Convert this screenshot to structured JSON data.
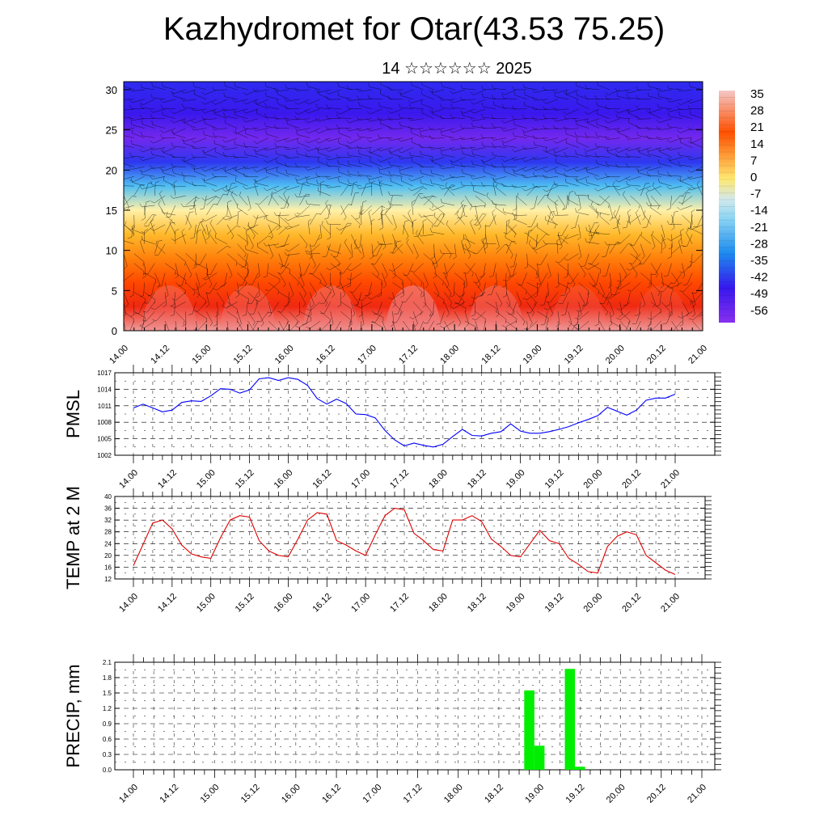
{
  "header": {
    "title": "Kazhydromet for Otar(43.53 75.25)",
    "subtitle": "14 ☆☆☆☆☆☆ 2025"
  },
  "x_ticks": [
    "14.00",
    "14.12",
    "15.00",
    "15.12",
    "16.00",
    "16.12",
    "17.00",
    "17.12",
    "18.00",
    "18.12",
    "19.00",
    "19.12",
    "20.00",
    "20.12",
    "21.00"
  ],
  "colors": {
    "pmsl_line": "#0000ff",
    "temp_line": "#dd0000",
    "precip_bar": "#00ee00",
    "wind_barb": "#000000"
  },
  "chart_data": [
    {
      "type": "heatmap",
      "title": "Upper-air temperature section with wind barbs",
      "x_categories": [
        "14.00",
        "14.12",
        "15.00",
        "15.12",
        "16.00",
        "16.12",
        "17.00",
        "17.12",
        "18.00",
        "18.12",
        "19.00",
        "19.12",
        "20.00",
        "20.12",
        "21.00"
      ],
      "y_ticks": [
        "0",
        "5",
        "10",
        "15",
        "20",
        "25",
        "30"
      ],
      "ylim": [
        0,
        31
      ],
      "legend_levels": [
        "35",
        "28",
        "21",
        "14",
        "7",
        "0",
        "-7",
        "-14",
        "-21",
        "-28",
        "-35",
        "-42",
        "-49",
        "-56"
      ],
      "colorbar_position": "right",
      "level_profile_y": [
        0,
        3,
        6,
        9,
        12,
        15,
        18,
        21,
        24,
        27,
        31
      ],
      "level_profile_value": [
        34,
        28,
        22,
        15,
        7,
        -5,
        -22,
        -40,
        -56,
        -48,
        -42
      ]
    },
    {
      "type": "line",
      "ylabel": "PMSL",
      "y_ticks": [
        "1002",
        "1005",
        "1008",
        "1011",
        "1014",
        "1017"
      ],
      "ylim": [
        1002,
        1017
      ],
      "grid": true,
      "x": [
        0,
        3,
        6,
        9,
        12,
        15,
        18,
        21,
        24,
        27,
        30,
        33,
        36,
        39,
        42,
        45,
        48,
        51,
        54,
        57,
        60,
        63,
        66,
        69,
        72,
        75,
        78,
        81,
        84,
        87,
        90,
        93,
        96,
        99,
        102,
        105,
        108,
        111,
        114,
        117,
        120,
        123,
        126,
        129,
        132,
        135,
        138,
        141,
        144,
        147,
        150,
        153,
        156,
        159,
        162,
        165,
        168
      ],
      "values": [
        1010.6,
        1011.3,
        1010.6,
        1009.9,
        1010.2,
        1011.6,
        1011.9,
        1011.8,
        1012.8,
        1014.1,
        1014.0,
        1013.3,
        1013.9,
        1015.9,
        1016.1,
        1015.6,
        1016.1,
        1015.8,
        1014.7,
        1012.3,
        1011.3,
        1012.2,
        1011.4,
        1009.5,
        1009.4,
        1008.8,
        1006.5,
        1004.8,
        1003.7,
        1004.2,
        1003.8,
        1003.5,
        1004.0,
        1005.4,
        1006.7,
        1005.6,
        1005.5,
        1006.0,
        1006.3,
        1007.7,
        1006.4,
        1006.0,
        1006.0,
        1006.3,
        1006.7,
        1007.2,
        1007.9,
        1008.5,
        1009.2,
        1010.7,
        1010.0,
        1009.3,
        1010.2,
        1012.0,
        1012.4,
        1012.4,
        1013.1
      ]
    },
    {
      "type": "line",
      "ylabel": "TEMP at 2 M",
      "y_ticks": [
        "12",
        "16",
        "20",
        "24",
        "28",
        "32",
        "36",
        "40"
      ],
      "ylim": [
        12,
        40
      ],
      "grid": true,
      "x": [
        0,
        6,
        9,
        12,
        15,
        18,
        21,
        24,
        27,
        30,
        33,
        36,
        39,
        42,
        45,
        48,
        51,
        54,
        57,
        60,
        63,
        66,
        69,
        72,
        75,
        78,
        81,
        84,
        87,
        90,
        93,
        96,
        99,
        102,
        105,
        108,
        111,
        114,
        117,
        120,
        123,
        126,
        129,
        132,
        135,
        138,
        141,
        144,
        147,
        150,
        153,
        156,
        159,
        162,
        165,
        168
      ],
      "values": [
        16.5,
        31,
        32,
        29,
        23.5,
        20.5,
        19.5,
        19,
        26,
        32,
        33.5,
        33,
        25,
        21.5,
        20,
        19.5,
        25.5,
        32,
        34.5,
        34,
        25,
        23.5,
        21.5,
        20,
        27,
        33.5,
        36,
        35.5,
        27.5,
        25,
        22,
        21.5,
        32,
        32,
        33.5,
        31.5,
        25.5,
        23,
        20,
        19.5,
        24,
        28.5,
        25,
        24,
        19,
        17,
        14.5,
        14,
        23,
        26.5,
        28,
        27,
        20,
        17.5,
        15,
        13.5
      ]
    },
    {
      "type": "bar",
      "ylabel": "PRECIP, mm",
      "y_ticks": [
        "0.0",
        "0.3",
        "0.6",
        "0.9",
        "1.2",
        "1.5",
        "1.8",
        "2.1"
      ],
      "ylim": [
        0,
        2.1
      ],
      "grid": true,
      "bars": [
        {
          "x": 117,
          "value": 1.55
        },
        {
          "x": 120,
          "value": 0.47
        },
        {
          "x": 129,
          "value": 1.97
        },
        {
          "x": 132,
          "value": 0.06
        }
      ]
    }
  ]
}
